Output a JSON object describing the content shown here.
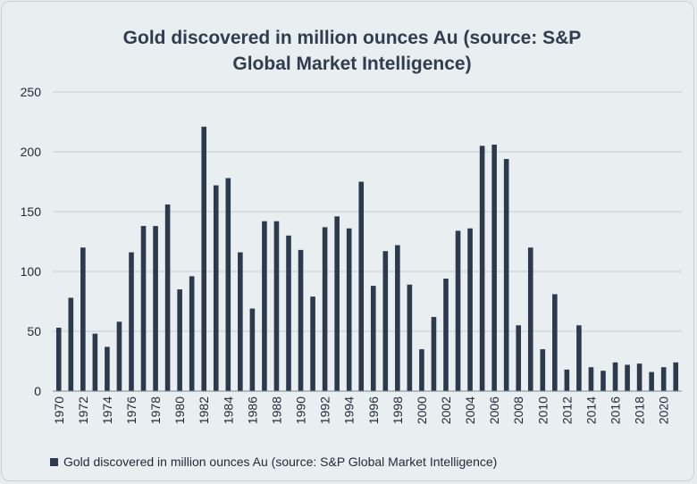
{
  "chart_data": {
    "type": "bar",
    "title_lines": [
      "Gold discovered in  million ounces Au (source:  S&P",
      "Global Market Intelligence)"
    ],
    "ylim": [
      0,
      250
    ],
    "yticks": [
      0,
      50,
      100,
      150,
      200,
      250
    ],
    "grid": true,
    "legend_position": "bottom",
    "colors": {
      "bar": "#2b3a4d",
      "grid": "#c6ccd1",
      "axis": "#7f8890"
    },
    "categories": [
      1970,
      1971,
      1972,
      1973,
      1974,
      1975,
      1976,
      1977,
      1978,
      1979,
      1980,
      1981,
      1982,
      1983,
      1984,
      1985,
      1986,
      1987,
      1988,
      1989,
      1990,
      1991,
      1992,
      1993,
      1994,
      1995,
      1996,
      1997,
      1998,
      1999,
      2000,
      2001,
      2002,
      2003,
      2004,
      2005,
      2006,
      2007,
      2008,
      2009,
      2010,
      2011,
      2012,
      2013,
      2014,
      2015,
      2016,
      2017,
      2018,
      2019,
      2020,
      2021
    ],
    "tick_labels": [
      "1970",
      "1972",
      "1974",
      "1976",
      "1978",
      "1980",
      "1982",
      "1984",
      "1986",
      "1988",
      "1990",
      "1992",
      "1994",
      "1996",
      "1998",
      "2000",
      "2002",
      "2004",
      "2006",
      "2008",
      "2010",
      "2012",
      "2014",
      "2016",
      "2018",
      "2020"
    ],
    "series": [
      {
        "name": "Gold discovered in  million ounces Au (source:  S&P Global Market Intelligence)",
        "values": [
          53,
          78,
          120,
          48,
          37,
          58,
          116,
          138,
          138,
          156,
          85,
          96,
          221,
          172,
          178,
          116,
          69,
          142,
          142,
          130,
          118,
          79,
          137,
          146,
          136,
          175,
          88,
          117,
          122,
          89,
          35,
          62,
          94,
          134,
          136,
          205,
          206,
          194,
          55,
          120,
          35,
          81,
          18,
          55,
          20,
          17,
          24,
          22,
          23,
          16,
          20,
          24
        ]
      }
    ]
  }
}
